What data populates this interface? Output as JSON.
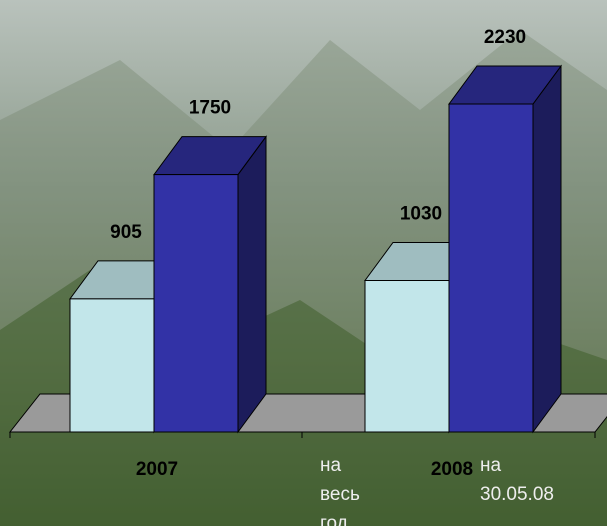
{
  "chart_data": {
    "type": "bar3d",
    "categories": [
      "2007",
      "2008"
    ],
    "series": [
      {
        "name": "на весь год",
        "color": "#c2e6ea",
        "values": [
          905,
          1030
        ]
      },
      {
        "name": "на 30.05.08",
        "color": "#3232a6",
        "values": [
          1750,
          2230
        ]
      }
    ]
  }
}
